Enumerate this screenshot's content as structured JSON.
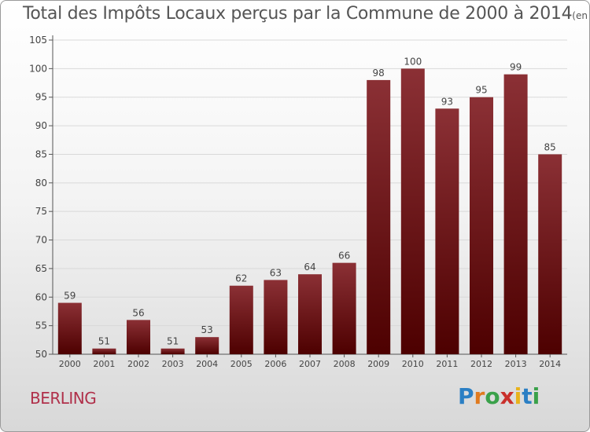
{
  "chart_data": {
    "type": "bar",
    "title": "Total des Impôts Locaux perçus par la Commune de 2000 à 2014",
    "subtitle": "(en milliers d'€)",
    "categories": [
      "2000",
      "2001",
      "2002",
      "2003",
      "2004",
      "2005",
      "2006",
      "2007",
      "2008",
      "2009",
      "2010",
      "2011",
      "2012",
      "2013",
      "2014"
    ],
    "values": [
      59,
      51,
      56,
      51,
      53,
      62,
      63,
      64,
      66,
      98,
      100,
      93,
      95,
      99,
      85
    ],
    "ylim": [
      50,
      105
    ],
    "yticks": [
      50,
      55,
      60,
      65,
      70,
      75,
      80,
      85,
      90,
      95,
      100,
      105
    ],
    "grid": true,
    "bar_color_top": "#8b3035",
    "bar_color_bottom": "#4d0000"
  },
  "commune": "BERLING",
  "brand": {
    "letters": [
      "P",
      "r",
      "o",
      "x",
      "i",
      "t",
      "i"
    ],
    "colors": [
      "#2b7fc4",
      "#e07a1f",
      "#3aa14a",
      "#c9302c",
      "#e8b21c",
      "#2b7fc4",
      "#3aa14a"
    ]
  }
}
